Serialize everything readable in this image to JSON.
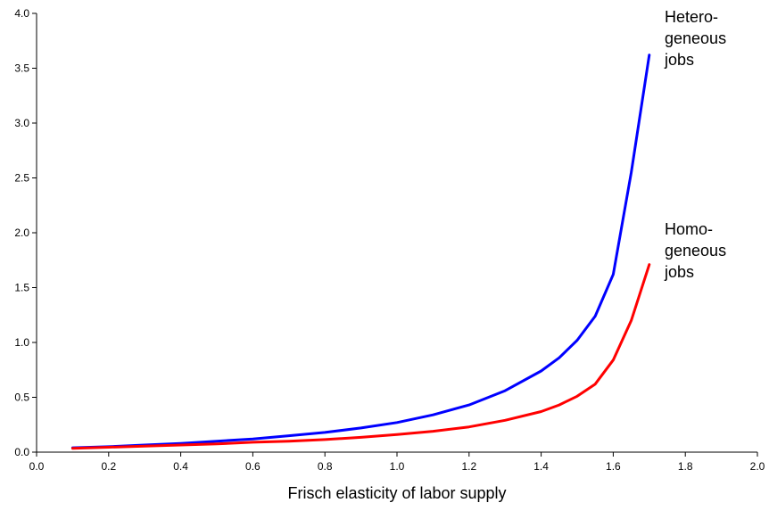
{
  "chart_data": {
    "type": "line",
    "title": "",
    "xlabel": "Frisch elasticity of labor supply",
    "ylabel": "",
    "xlim": [
      0.0,
      2.0
    ],
    "ylim": [
      0.0,
      4.0
    ],
    "x_ticks": [
      "0.0",
      "0.2",
      "0.4",
      "0.6",
      "0.8",
      "1.0",
      "1.2",
      "1.4",
      "1.6",
      "1.8",
      "2.0"
    ],
    "y_ticks": [
      "0.0",
      "0.5",
      "1.0",
      "1.5",
      "2.0",
      "2.5",
      "3.0",
      "3.5",
      "4.0"
    ],
    "grid": false,
    "legend": "none",
    "series": [
      {
        "label_lines": [
          "Hetero-",
          "geneous",
          "jobs"
        ],
        "color": "#0000ff",
        "x": [
          0.1,
          0.2,
          0.3,
          0.4,
          0.5,
          0.6,
          0.7,
          0.8,
          0.9,
          1.0,
          1.1,
          1.2,
          1.3,
          1.4,
          1.45,
          1.5,
          1.55,
          1.6,
          1.65,
          1.7
        ],
        "y": [
          0.04,
          0.05,
          0.065,
          0.08,
          0.1,
          0.12,
          0.15,
          0.18,
          0.22,
          0.27,
          0.34,
          0.43,
          0.56,
          0.74,
          0.86,
          1.02,
          1.24,
          1.62,
          2.55,
          3.62
        ]
      },
      {
        "label_lines": [
          "Homo-",
          "geneous",
          "jobs"
        ],
        "color": "#ff0000",
        "x": [
          0.1,
          0.2,
          0.3,
          0.4,
          0.5,
          0.6,
          0.7,
          0.8,
          0.9,
          1.0,
          1.1,
          1.2,
          1.3,
          1.4,
          1.45,
          1.5,
          1.55,
          1.6,
          1.65,
          1.7
        ],
        "y": [
          0.035,
          0.045,
          0.055,
          0.065,
          0.075,
          0.09,
          0.1,
          0.115,
          0.135,
          0.16,
          0.19,
          0.23,
          0.29,
          0.37,
          0.43,
          0.51,
          0.62,
          0.84,
          1.2,
          1.71
        ]
      }
    ]
  }
}
